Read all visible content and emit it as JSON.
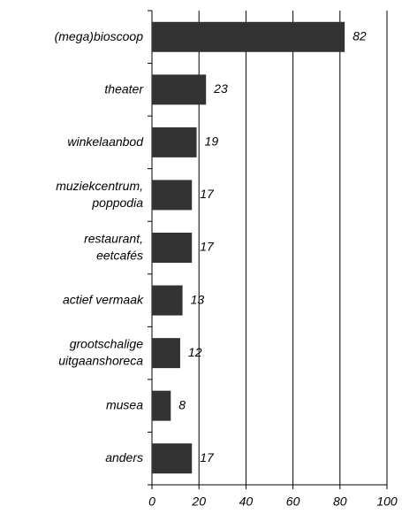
{
  "chart_data": {
    "type": "barh",
    "categories": [
      "(mega)bioscoop",
      "theater",
      "winkelaanbod",
      "muziekcentrum,\npoppodia",
      "restaurant,\neetcafés",
      "actief vermaak",
      "grootschalige\nuitgaanshoreca",
      "musea",
      "anders"
    ],
    "values": [
      82,
      23,
      19,
      17,
      17,
      13,
      12,
      8,
      17
    ],
    "color": "#333333",
    "xlim": [
      0,
      100
    ],
    "xticks": [
      0,
      20,
      40,
      60,
      80,
      100
    ],
    "grid": true
  }
}
